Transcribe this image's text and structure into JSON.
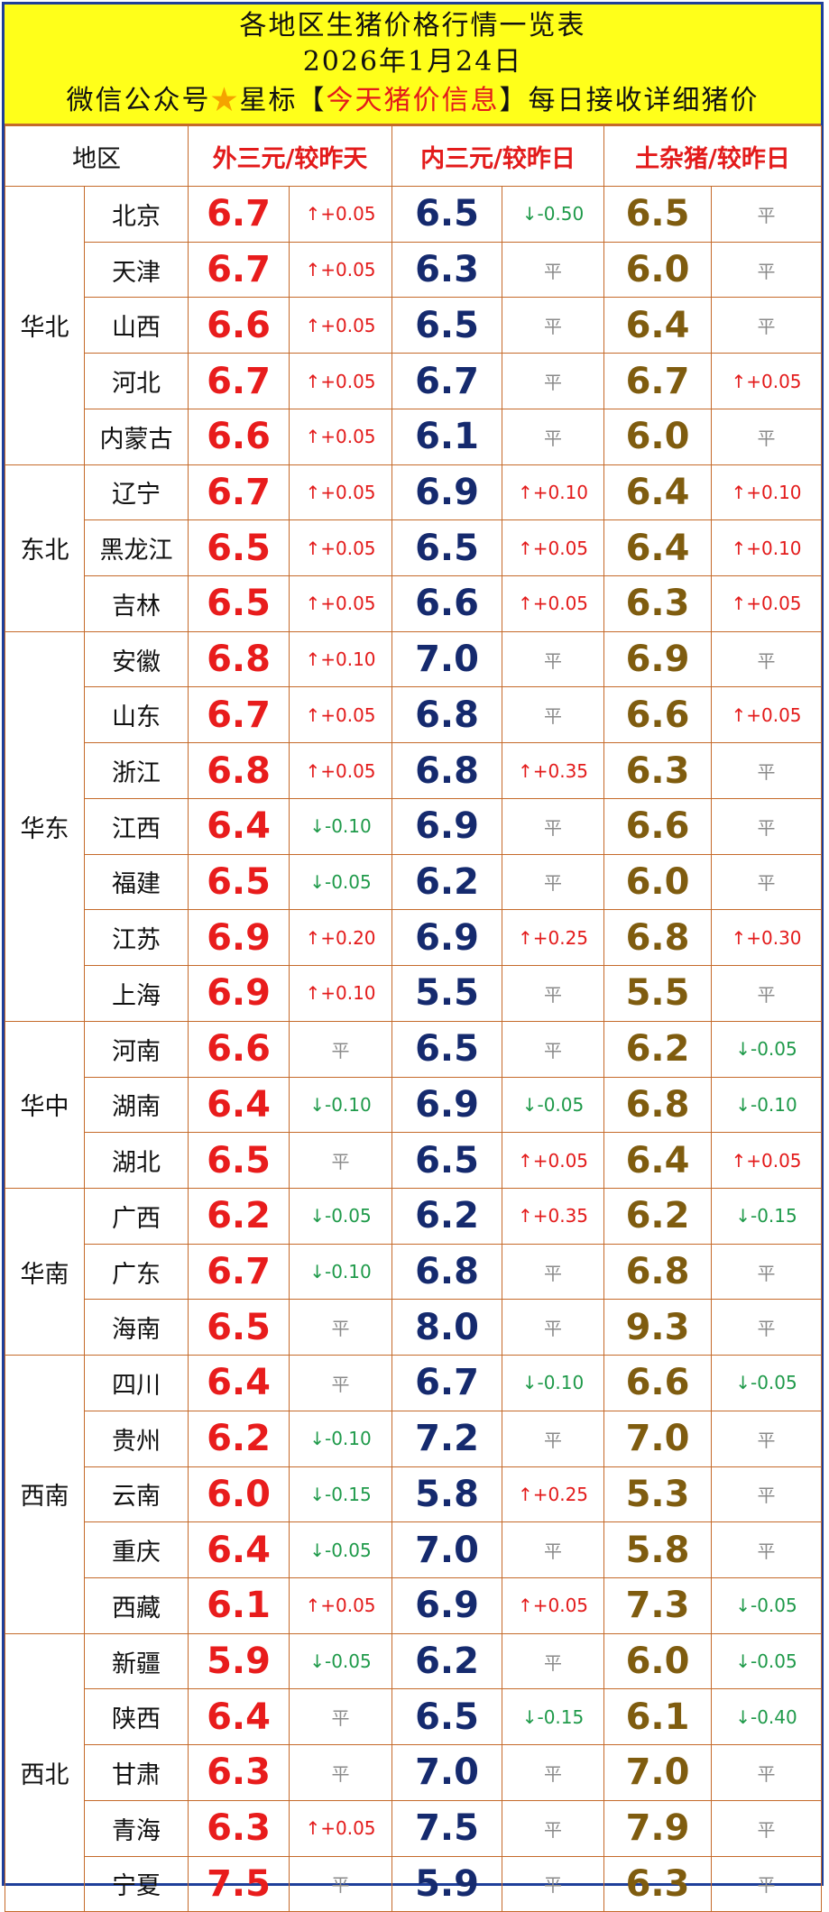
{
  "header": {
    "title": "各地区生猪价格行情一览表",
    "date": "2026年1月24日",
    "notice_prefix": "微信公众号",
    "notice_star_label": "星标",
    "notice_bracket_open": "【",
    "notice_highlight": "今天猪价信息",
    "notice_bracket_close": "】",
    "notice_suffix": "每日接收详细猪价",
    "star_icon": "star-icon"
  },
  "columns": {
    "area": "地区",
    "ext": "外三元/较昨天",
    "int": "内三元/较昨日",
    "mix": "土杂猪/较昨日"
  },
  "colors": {
    "header_bg": "#ffff1a",
    "border": "#c56a2a",
    "ext_price": "#e81c1c",
    "int_price": "#152a6e",
    "mix_price": "#7f5c0f",
    "up": "#e31b1b",
    "down": "#1f9a4a",
    "flat": "#8a8a8a"
  },
  "regions": [
    {
      "name": "华北",
      "rows": [
        {
          "province": "北京",
          "ext": "6.7",
          "ext_chg": "↑+0.05",
          "int": "6.5",
          "int_chg": "↓-0.50",
          "mix": "6.5",
          "mix_chg": "平"
        },
        {
          "province": "天津",
          "ext": "6.7",
          "ext_chg": "↑+0.05",
          "int": "6.3",
          "int_chg": "平",
          "mix": "6.0",
          "mix_chg": "平"
        },
        {
          "province": "山西",
          "ext": "6.6",
          "ext_chg": "↑+0.05",
          "int": "6.5",
          "int_chg": "平",
          "mix": "6.4",
          "mix_chg": "平"
        },
        {
          "province": "河北",
          "ext": "6.7",
          "ext_chg": "↑+0.05",
          "int": "6.7",
          "int_chg": "平",
          "mix": "6.7",
          "mix_chg": "↑+0.05"
        },
        {
          "province": "内蒙古",
          "ext": "6.6",
          "ext_chg": "↑+0.05",
          "int": "6.1",
          "int_chg": "平",
          "mix": "6.0",
          "mix_chg": "平"
        }
      ]
    },
    {
      "name": "东北",
      "rows": [
        {
          "province": "辽宁",
          "ext": "6.7",
          "ext_chg": "↑+0.05",
          "int": "6.9",
          "int_chg": "↑+0.10",
          "mix": "6.4",
          "mix_chg": "↑+0.10"
        },
        {
          "province": "黑龙江",
          "ext": "6.5",
          "ext_chg": "↑+0.05",
          "int": "6.5",
          "int_chg": "↑+0.05",
          "mix": "6.4",
          "mix_chg": "↑+0.10"
        },
        {
          "province": "吉林",
          "ext": "6.5",
          "ext_chg": "↑+0.05",
          "int": "6.6",
          "int_chg": "↑+0.05",
          "mix": "6.3",
          "mix_chg": "↑+0.05"
        }
      ]
    },
    {
      "name": "华东",
      "rows": [
        {
          "province": "安徽",
          "ext": "6.8",
          "ext_chg": "↑+0.10",
          "int": "7.0",
          "int_chg": "平",
          "mix": "6.9",
          "mix_chg": "平"
        },
        {
          "province": "山东",
          "ext": "6.7",
          "ext_chg": "↑+0.05",
          "int": "6.8",
          "int_chg": "平",
          "mix": "6.6",
          "mix_chg": "↑+0.05"
        },
        {
          "province": "浙江",
          "ext": "6.8",
          "ext_chg": "↑+0.05",
          "int": "6.8",
          "int_chg": "↑+0.35",
          "mix": "6.3",
          "mix_chg": "平"
        },
        {
          "province": "江西",
          "ext": "6.4",
          "ext_chg": "↓-0.10",
          "int": "6.9",
          "int_chg": "平",
          "mix": "6.6",
          "mix_chg": "平"
        },
        {
          "province": "福建",
          "ext": "6.5",
          "ext_chg": "↓-0.05",
          "int": "6.2",
          "int_chg": "平",
          "mix": "6.0",
          "mix_chg": "平"
        },
        {
          "province": "江苏",
          "ext": "6.9",
          "ext_chg": "↑+0.20",
          "int": "6.9",
          "int_chg": "↑+0.25",
          "mix": "6.8",
          "mix_chg": "↑+0.30"
        },
        {
          "province": "上海",
          "ext": "6.9",
          "ext_chg": "↑+0.10",
          "int": "5.5",
          "int_chg": "平",
          "mix": "5.5",
          "mix_chg": "平"
        }
      ]
    },
    {
      "name": "华中",
      "rows": [
        {
          "province": "河南",
          "ext": "6.6",
          "ext_chg": "平",
          "int": "6.5",
          "int_chg": "平",
          "mix": "6.2",
          "mix_chg": "↓-0.05"
        },
        {
          "province": "湖南",
          "ext": "6.4",
          "ext_chg": "↓-0.10",
          "int": "6.9",
          "int_chg": "↓-0.05",
          "mix": "6.8",
          "mix_chg": "↓-0.10"
        },
        {
          "province": "湖北",
          "ext": "6.5",
          "ext_chg": "平",
          "int": "6.5",
          "int_chg": "↑+0.05",
          "mix": "6.4",
          "mix_chg": "↑+0.05"
        }
      ]
    },
    {
      "name": "华南",
      "rows": [
        {
          "province": "广西",
          "ext": "6.2",
          "ext_chg": "↓-0.05",
          "int": "6.2",
          "int_chg": "↑+0.35",
          "mix": "6.2",
          "mix_chg": "↓-0.15"
        },
        {
          "province": "广东",
          "ext": "6.7",
          "ext_chg": "↓-0.10",
          "int": "6.8",
          "int_chg": "平",
          "mix": "6.8",
          "mix_chg": "平"
        },
        {
          "province": "海南",
          "ext": "6.5",
          "ext_chg": "平",
          "int": "8.0",
          "int_chg": "平",
          "mix": "9.3",
          "mix_chg": "平"
        }
      ]
    },
    {
      "name": "西南",
      "rows": [
        {
          "province": "四川",
          "ext": "6.4",
          "ext_chg": "平",
          "int": "6.7",
          "int_chg": "↓-0.10",
          "mix": "6.6",
          "mix_chg": "↓-0.05"
        },
        {
          "province": "贵州",
          "ext": "6.2",
          "ext_chg": "↓-0.10",
          "int": "7.2",
          "int_chg": "平",
          "mix": "7.0",
          "mix_chg": "平"
        },
        {
          "province": "云南",
          "ext": "6.0",
          "ext_chg": "↓-0.15",
          "int": "5.8",
          "int_chg": "↑+0.25",
          "mix": "5.3",
          "mix_chg": "平"
        },
        {
          "province": "重庆",
          "ext": "6.4",
          "ext_chg": "↓-0.05",
          "int": "7.0",
          "int_chg": "平",
          "mix": "5.8",
          "mix_chg": "平"
        },
        {
          "province": "西藏",
          "ext": "6.1",
          "ext_chg": "↑+0.05",
          "int": "6.9",
          "int_chg": "↑+0.05",
          "mix": "7.3",
          "mix_chg": "↓-0.05"
        }
      ]
    },
    {
      "name": "西北",
      "rows": [
        {
          "province": "新疆",
          "ext": "5.9",
          "ext_chg": "↓-0.05",
          "int": "6.2",
          "int_chg": "平",
          "mix": "6.0",
          "mix_chg": "↓-0.05"
        },
        {
          "province": "陕西",
          "ext": "6.4",
          "ext_chg": "平",
          "int": "6.5",
          "int_chg": "↓-0.15",
          "mix": "6.1",
          "mix_chg": "↓-0.40"
        },
        {
          "province": "甘肃",
          "ext": "6.3",
          "ext_chg": "平",
          "int": "7.0",
          "int_chg": "平",
          "mix": "7.0",
          "mix_chg": "平"
        },
        {
          "province": "青海",
          "ext": "6.3",
          "ext_chg": "↑+0.05",
          "int": "7.5",
          "int_chg": "平",
          "mix": "7.9",
          "mix_chg": "平"
        },
        {
          "province": "宁夏",
          "ext": "7.5",
          "ext_chg": "平",
          "int": "5.9",
          "int_chg": "平",
          "mix": "6.3",
          "mix_chg": "平"
        }
      ]
    }
  ]
}
